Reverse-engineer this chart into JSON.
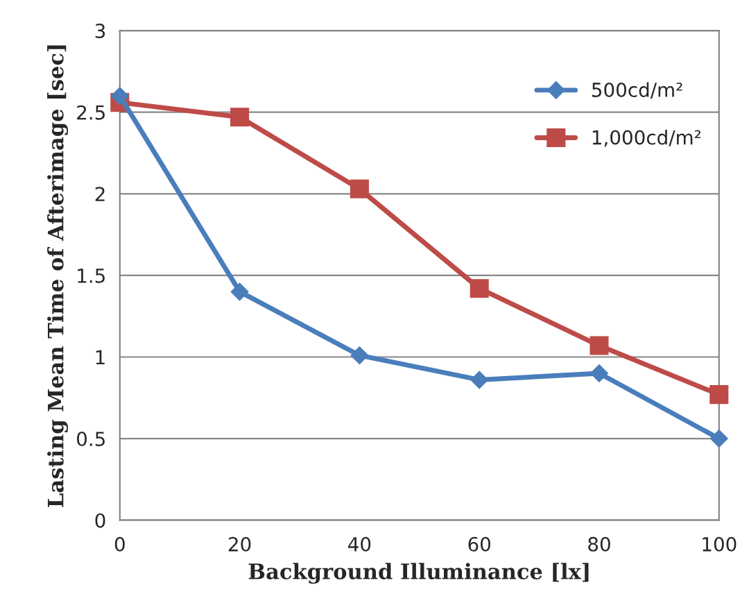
{
  "chart_data": {
    "type": "line",
    "xlabel": "Background Illuminance [lx]",
    "ylabel": "Lasting Mean Time of Afterimage [sec]",
    "x": [
      0,
      20,
      40,
      60,
      80,
      100
    ],
    "series": [
      {
        "name": "500cd/m²",
        "color": "#4a7ebb",
        "marker": "diamond",
        "values": [
          2.6,
          1.4,
          1.01,
          0.86,
          0.9,
          0.5
        ]
      },
      {
        "name": "1,000cd/m²",
        "color": "#be4b48",
        "marker": "square",
        "values": [
          2.56,
          2.47,
          2.03,
          1.42,
          1.07,
          0.77
        ]
      }
    ],
    "xlim": [
      0,
      100
    ],
    "xticks": [
      0,
      20,
      40,
      60,
      80,
      100
    ],
    "ylim": [
      0,
      3
    ],
    "yticks": [
      0,
      0.5,
      1,
      1.5,
      2,
      2.5,
      3
    ],
    "grid": "y",
    "legend": "top right",
    "line_style": "solid"
  }
}
